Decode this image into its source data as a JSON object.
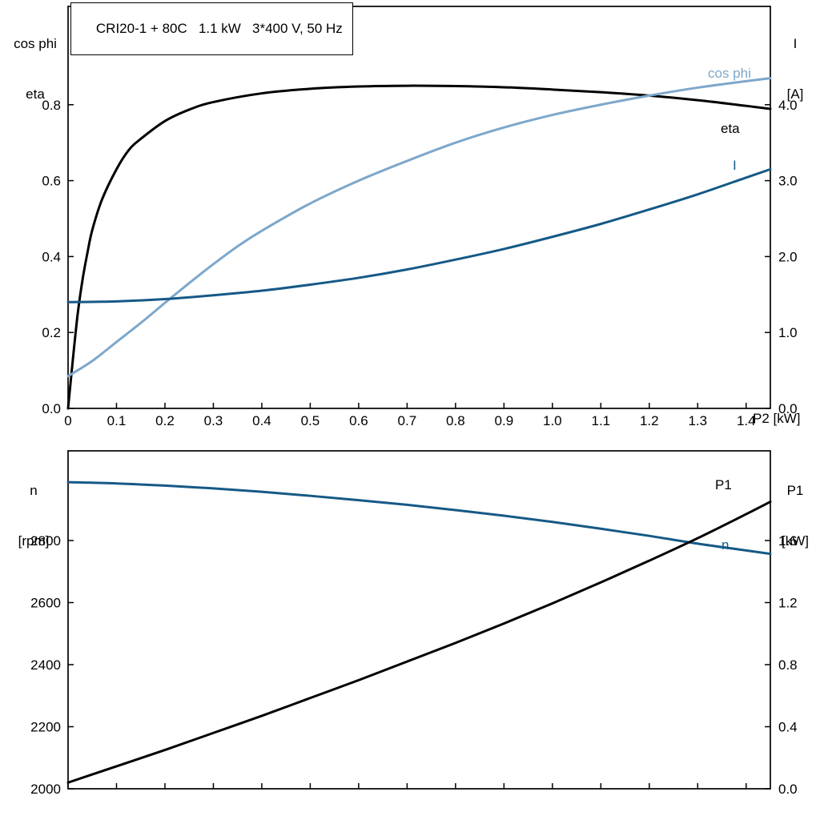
{
  "header": {
    "title": "CRI20-1 + 80C   1.1 kW   3*400 V, 50 Hz"
  },
  "colors": {
    "black": "#000000",
    "cos_phi_blue": "#7ea7cb",
    "dark_blue": "#155987"
  },
  "chart_data": [
    {
      "type": "line",
      "title": "CRI20-1 + 80C   1.1 kW   3*400 V, 50 Hz",
      "legend_position": "curve-end-labels",
      "grid": false,
      "x_axis": {
        "label": "P2 [kW]",
        "min": 0,
        "max": 1.45,
        "ticks": [
          0,
          0.1,
          0.2,
          0.3,
          0.4,
          0.5,
          0.6,
          0.7,
          0.8,
          0.9,
          1.0,
          1.1,
          1.2,
          1.3,
          1.4
        ],
        "tick_labels": [
          "0",
          "0.1",
          "0.2",
          "0.3",
          "0.4",
          "0.5",
          "0.6",
          "0.7",
          "0.8",
          "0.9",
          "1.0",
          "1.1",
          "1.2",
          "1.3",
          "1.4"
        ]
      },
      "y_left": {
        "label1": "cos phi",
        "label2": "eta",
        "min": 0,
        "max": 1.059,
        "ticks": [
          0,
          0.2,
          0.4,
          0.6,
          0.8
        ],
        "tick_labels": [
          "0.0",
          "0.2",
          "0.4",
          "0.6",
          "0.8"
        ]
      },
      "y_right": {
        "label1": "I",
        "label2": "[A]",
        "min": 0,
        "max": 5.295,
        "ticks": [
          0,
          1,
          2,
          3,
          4
        ],
        "tick_labels": [
          "0.0",
          "1.0",
          "2.0",
          "3.0",
          "4.0"
        ]
      },
      "series": [
        {
          "name": "eta",
          "label": "eta",
          "axis": "left",
          "color": "#000000",
          "x": [
            0,
            0.01,
            0.02,
            0.03,
            0.04,
            0.05,
            0.07,
            0.1,
            0.125,
            0.15,
            0.2,
            0.25,
            0.3,
            0.4,
            0.5,
            0.6,
            0.7,
            0.8,
            0.9,
            1.0,
            1.1,
            1.2,
            1.3,
            1.4,
            1.45
          ],
          "y": [
            0,
            0.13,
            0.25,
            0.34,
            0.41,
            0.47,
            0.55,
            0.63,
            0.68,
            0.71,
            0.757,
            0.787,
            0.807,
            0.83,
            0.842,
            0.848,
            0.85,
            0.849,
            0.846,
            0.84,
            0.833,
            0.824,
            0.812,
            0.797,
            0.789
          ]
        },
        {
          "name": "cos phi",
          "label": "cos phi",
          "axis": "left",
          "color": "#7ea7cb",
          "x": [
            0,
            0.05,
            0.1,
            0.15,
            0.2,
            0.25,
            0.3,
            0.35,
            0.4,
            0.5,
            0.6,
            0.7,
            0.8,
            0.9,
            1.0,
            1.1,
            1.2,
            1.3,
            1.4,
            1.45
          ],
          "y": [
            0.085,
            0.125,
            0.175,
            0.225,
            0.278,
            0.33,
            0.38,
            0.427,
            0.468,
            0.54,
            0.6,
            0.652,
            0.7,
            0.74,
            0.773,
            0.8,
            0.824,
            0.845,
            0.862,
            0.87
          ]
        },
        {
          "name": "I",
          "label": "I",
          "axis": "right",
          "color": "#155987",
          "x": [
            0,
            0.1,
            0.2,
            0.3,
            0.4,
            0.5,
            0.6,
            0.7,
            0.8,
            0.9,
            1.0,
            1.1,
            1.2,
            1.3,
            1.4,
            1.45
          ],
          "y": [
            1.4,
            1.41,
            1.44,
            1.49,
            1.55,
            1.63,
            1.72,
            1.83,
            1.96,
            2.1,
            2.26,
            2.43,
            2.62,
            2.82,
            3.04,
            3.15
          ]
        }
      ]
    },
    {
      "type": "line",
      "title": "",
      "legend_position": "curve-end-labels",
      "grid": false,
      "x_axis": {
        "label": "",
        "min": 0,
        "max": 1.45,
        "ticks": [
          0,
          0.1,
          0.2,
          0.3,
          0.4,
          0.5,
          0.6,
          0.7,
          0.8,
          0.9,
          1.0,
          1.1,
          1.2,
          1.3,
          1.4
        ],
        "tick_labels": []
      },
      "y_left": {
        "label1": "n",
        "label2": "[rpm]",
        "min": 2000,
        "max": 3089,
        "ticks": [
          2000,
          2200,
          2400,
          2600,
          2800
        ],
        "tick_labels": [
          "2000",
          "2200",
          "2400",
          "2600",
          "2800"
        ]
      },
      "y_right": {
        "label1": "P1",
        "label2": "[kW]",
        "min": 0,
        "max": 2.178,
        "ticks": [
          0,
          0.4,
          0.8,
          1.2,
          1.6
        ],
        "tick_labels": [
          "0.0",
          "0.4",
          "0.8",
          "1.2",
          "1.6"
        ]
      },
      "series": [
        {
          "name": "n",
          "label": "n",
          "axis": "left",
          "color": "#155987",
          "x": [
            0,
            0.1,
            0.2,
            0.3,
            0.4,
            0.5,
            0.6,
            0.7,
            0.8,
            0.9,
            1.0,
            1.1,
            1.2,
            1.3,
            1.4,
            1.45
          ],
          "y": [
            2988,
            2984,
            2977,
            2968,
            2957,
            2944,
            2930,
            2915,
            2898,
            2880,
            2860,
            2838,
            2815,
            2790,
            2768,
            2757
          ]
        },
        {
          "name": "P1",
          "label": "P1",
          "axis": "right",
          "color": "#000000",
          "x": [
            0,
            0.1,
            0.2,
            0.3,
            0.4,
            0.5,
            0.6,
            0.7,
            0.8,
            0.9,
            1.0,
            1.1,
            1.2,
            1.3,
            1.4,
            1.45
          ],
          "y": [
            0.04,
            0.145,
            0.25,
            0.36,
            0.47,
            0.585,
            0.7,
            0.82,
            0.94,
            1.065,
            1.195,
            1.33,
            1.47,
            1.615,
            1.77,
            1.85
          ]
        }
      ]
    }
  ]
}
